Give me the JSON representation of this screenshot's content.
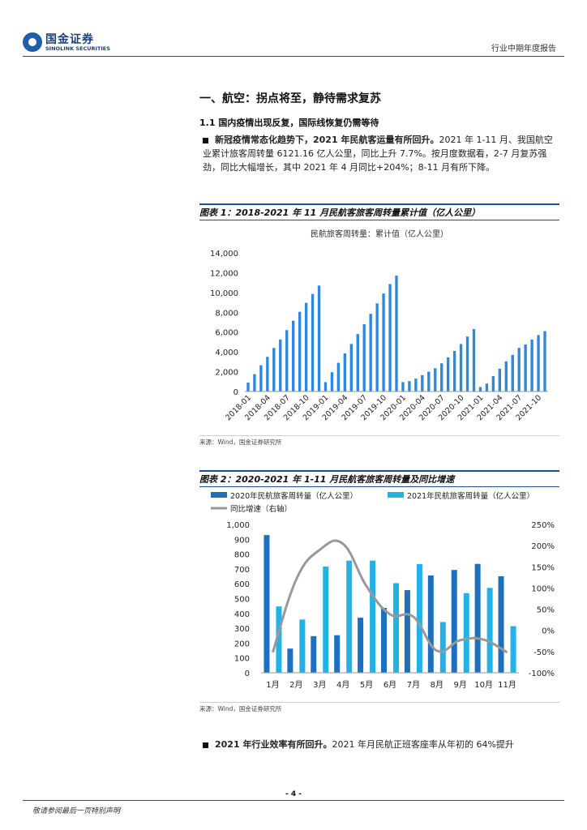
{
  "header": {
    "logo_cn": "国金证券",
    "logo_en": "SINOLINK SECURITIES",
    "report_type": "行业中期年度报告"
  },
  "section": {
    "h1": "一、航空：拐点将至，静待需求复苏",
    "h2": "1.1 国内疫情出现反复，国际线恢复仍需等待"
  },
  "para1": {
    "bold": "新冠疫情常态化趋势下，2021 年民航客运量有所回升。",
    "text": "2021 年 1-11 月、我国航空业累计旅客周转量 6121.16 亿人公里，同比上升 7.7%。按月度数据看，2-7 月复苏强劲，同比大幅增长，其中 2021 年 4 月同比+204%；8-11 月有所下降。"
  },
  "figure1": {
    "title": "图表 1：2018-2021 年 11 月民航客旅客周转量累计值（亿人公里）",
    "source": "来源：Wind，国金证券研究所"
  },
  "figure2": {
    "title": "图表 2：2020-2021 年 1-11 月民航客旅客周转量及同比增速",
    "source": "来源：Wind，国金证券研究所"
  },
  "para2": {
    "bold": "2021 年行业效率有所回升。",
    "text": "2021 年月民航正班客座率从年初的 64%提升"
  },
  "footer": {
    "page": "- 4 -",
    "disclaimer": "敬请参阅最后一页特别声明"
  },
  "chart_data": [
    {
      "type": "bar",
      "title": "民航旅客周转量：累计值（亿人公里）",
      "ylim": [
        0,
        14000
      ],
      "yticks": [
        "14,000",
        "12,000",
        "10,000",
        "8,000",
        "6,000",
        "4,000",
        "2,000",
        "0"
      ],
      "xtick_labels": [
        "2018-01",
        "2018-04",
        "2018-07",
        "2018-10",
        "2019-01",
        "2019-04",
        "2019-07",
        "2019-10",
        "2020-01",
        "2020-04",
        "2020-07",
        "2020-10",
        "2021-01",
        "2021-04",
        "2021-07",
        "2021-10"
      ],
      "color": "#2e86de",
      "values": [
        900,
        1750,
        2650,
        3500,
        4400,
        5250,
        6200,
        7150,
        8050,
        8950,
        9850,
        10700,
        950,
        1950,
        2900,
        3850,
        4800,
        5800,
        6800,
        7850,
        8900,
        9900,
        10850,
        11700,
        950,
        1050,
        1300,
        1650,
        2000,
        2350,
        2850,
        3450,
        4100,
        4800,
        5550,
        6300,
        450,
        800,
        1550,
        2300,
        3050,
        3700,
        4400,
        4750,
        5250,
        5700,
        6100
      ]
    },
    {
      "type": "bar",
      "categories": [
        "1月",
        "2月",
        "3月",
        "4月",
        "5月",
        "6月",
        "7月",
        "8月",
        "9月",
        "10月",
        "11月"
      ],
      "ylim": [
        0,
        1000
      ],
      "yticks": [
        "1,000",
        "900",
        "800",
        "700",
        "600",
        "500",
        "400",
        "300",
        "200",
        "100",
        "0"
      ],
      "y2lim": [
        -100,
        250
      ],
      "y2ticks": [
        "250%",
        "200%",
        "150%",
        "100%",
        "50%",
        "0%",
        "-50%",
        "-100%"
      ],
      "series": [
        {
          "name": "2020年民航旅客周转量（亿人公里）",
          "color": "#1f6fbf",
          "values": [
            928,
            163,
            247,
            253,
            371,
            437,
            557,
            656,
            693,
            734,
            651
          ]
        },
        {
          "name": "2021年民航旅客周转量（亿人公里）",
          "color": "#22b2e8",
          "values": [
            447,
            359,
            716,
            756,
            756,
            604,
            733,
            342,
            537,
            572,
            314
          ]
        },
        {
          "name": "同比增速（右轴）",
          "type": "line",
          "axis": "right",
          "color": "#999999",
          "values": [
            -51.8,
            120,
            190,
            204,
            104,
            38,
            32,
            -48,
            -23,
            -22,
            -52
          ]
        }
      ]
    }
  ]
}
